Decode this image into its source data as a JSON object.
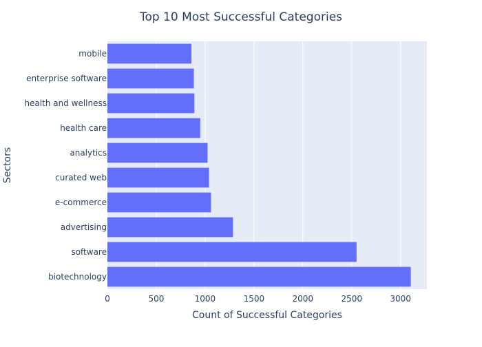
{
  "chart_data": {
    "type": "bar",
    "orientation": "horizontal",
    "title": "Top 10 Most Successful Categories",
    "xlabel": "Count of Successful Categories",
    "ylabel": "Sectors",
    "categories": [
      "mobile",
      "enterprise software",
      "health and wellness",
      "health care",
      "analytics",
      "curated web",
      "e-commerce",
      "advertising",
      "software",
      "biotechnology"
    ],
    "values": [
      860,
      885,
      890,
      950,
      1025,
      1040,
      1060,
      1285,
      2550,
      3105
    ],
    "xlim": [
      0,
      3270
    ],
    "xticks": [
      0,
      500,
      1000,
      1500,
      2000,
      2500,
      3000
    ],
    "grid": true,
    "colors": {
      "bar": "#636efa",
      "plot_bg": "#e5ecf6",
      "grid": "#ffffff",
      "text": "#2a3f5f"
    }
  }
}
